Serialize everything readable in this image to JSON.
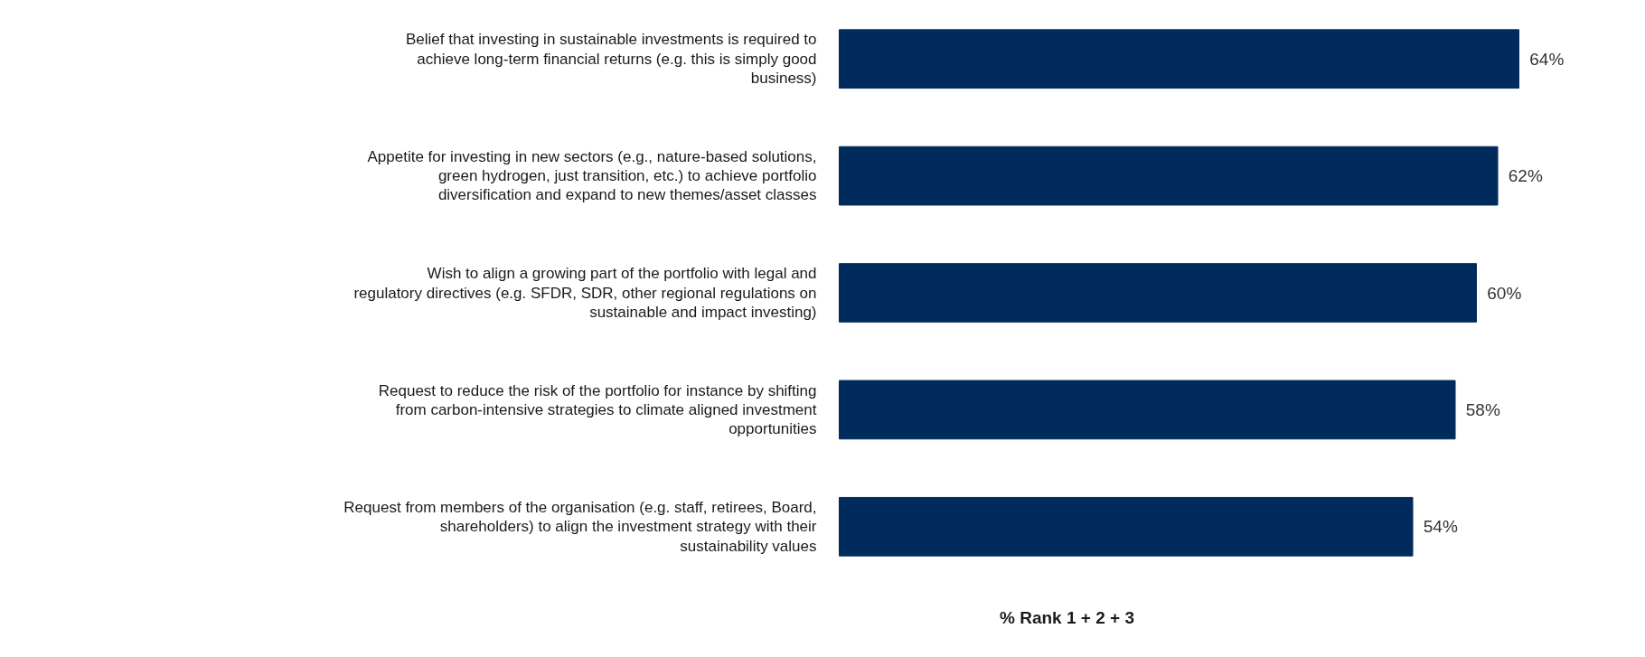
{
  "chart_data": {
    "type": "bar",
    "orientation": "horizontal",
    "xlabel": "% Rank 1 + 2 + 3",
    "categories": [
      "Belief that investing in sustainable investments is required to achieve long-term financial returns (e.g. this is simply good business)",
      "Appetite for investing in new sectors (e.g., nature-based solutions, green hydrogen, just transition, etc.) to achieve portfolio diversification and expand to new themes/asset classes",
      "Wish to align a growing part of the portfolio with legal and regulatory directives (e.g. SFDR, SDR, other regional regulations on sustainable and impact investing)",
      "Request to reduce the risk of the portfolio for instance by shifting from carbon-intensive strategies to climate aligned investment opportunities",
      "Request from members of the organisation (e.g. staff, retirees, Board, shareholders) to align the investment strategy with their sustainability values"
    ],
    "values": [
      64,
      62,
      60,
      58,
      54
    ],
    "value_labels": [
      "64%",
      "62%",
      "60%",
      "58%",
      "54%"
    ],
    "color": "#002b5c"
  }
}
